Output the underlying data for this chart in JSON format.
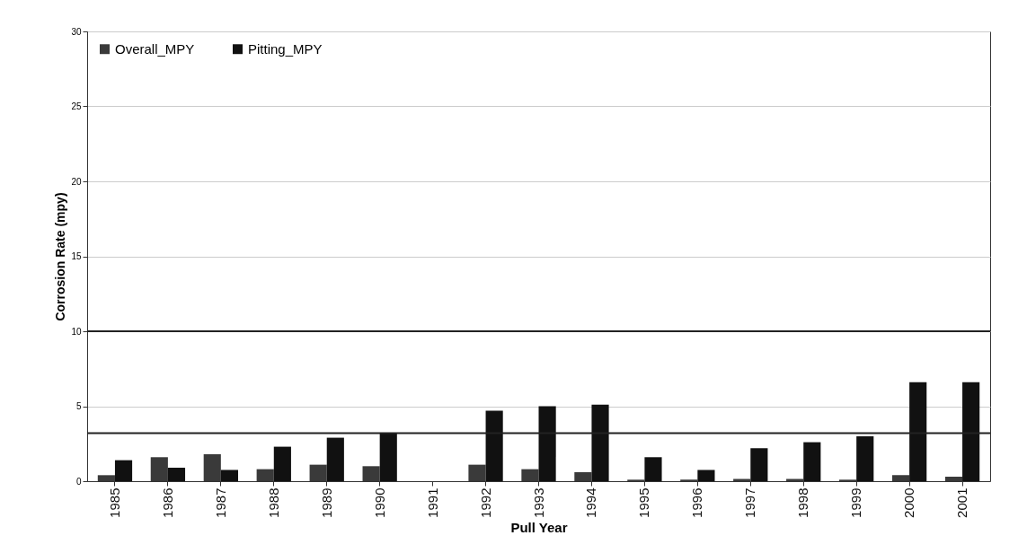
{
  "chart_data": {
    "type": "bar",
    "xlabel": "Pull Year",
    "ylabel": "Corrosion Rate (mpy)",
    "categories": [
      "1985",
      "1986",
      "1987",
      "1988",
      "1989",
      "1990",
      "1991",
      "1992",
      "1993",
      "1994",
      "1995",
      "1996",
      "1997",
      "1998",
      "1999",
      "2000",
      "2001"
    ],
    "series": [
      {
        "name": "Overall_MPY",
        "color": "#3a3a3a",
        "values": [
          0.4,
          1.6,
          1.8,
          0.8,
          1.1,
          1.0,
          null,
          1.1,
          0.8,
          0.6,
          0.1,
          0.1,
          0.15,
          0.15,
          0.1,
          0.4,
          0.3
        ]
      },
      {
        "name": "Pitting_MPY",
        "color": "#111111",
        "values": [
          1.4,
          0.9,
          0.75,
          2.3,
          2.9,
          3.2,
          null,
          4.7,
          5.0,
          5.1,
          1.6,
          0.75,
          2.2,
          2.6,
          3.0,
          6.6,
          6.6
        ]
      }
    ],
    "ylim": [
      0,
      30
    ],
    "yticks": [
      0,
      5,
      10,
      15,
      20,
      25,
      30
    ],
    "ref_lines": [
      {
        "axis": "y",
        "value": 10,
        "color": "#222222"
      },
      {
        "axis": "y",
        "value": 3.2,
        "color": "#222222"
      }
    ],
    "grid": "y",
    "legend": "top left"
  }
}
